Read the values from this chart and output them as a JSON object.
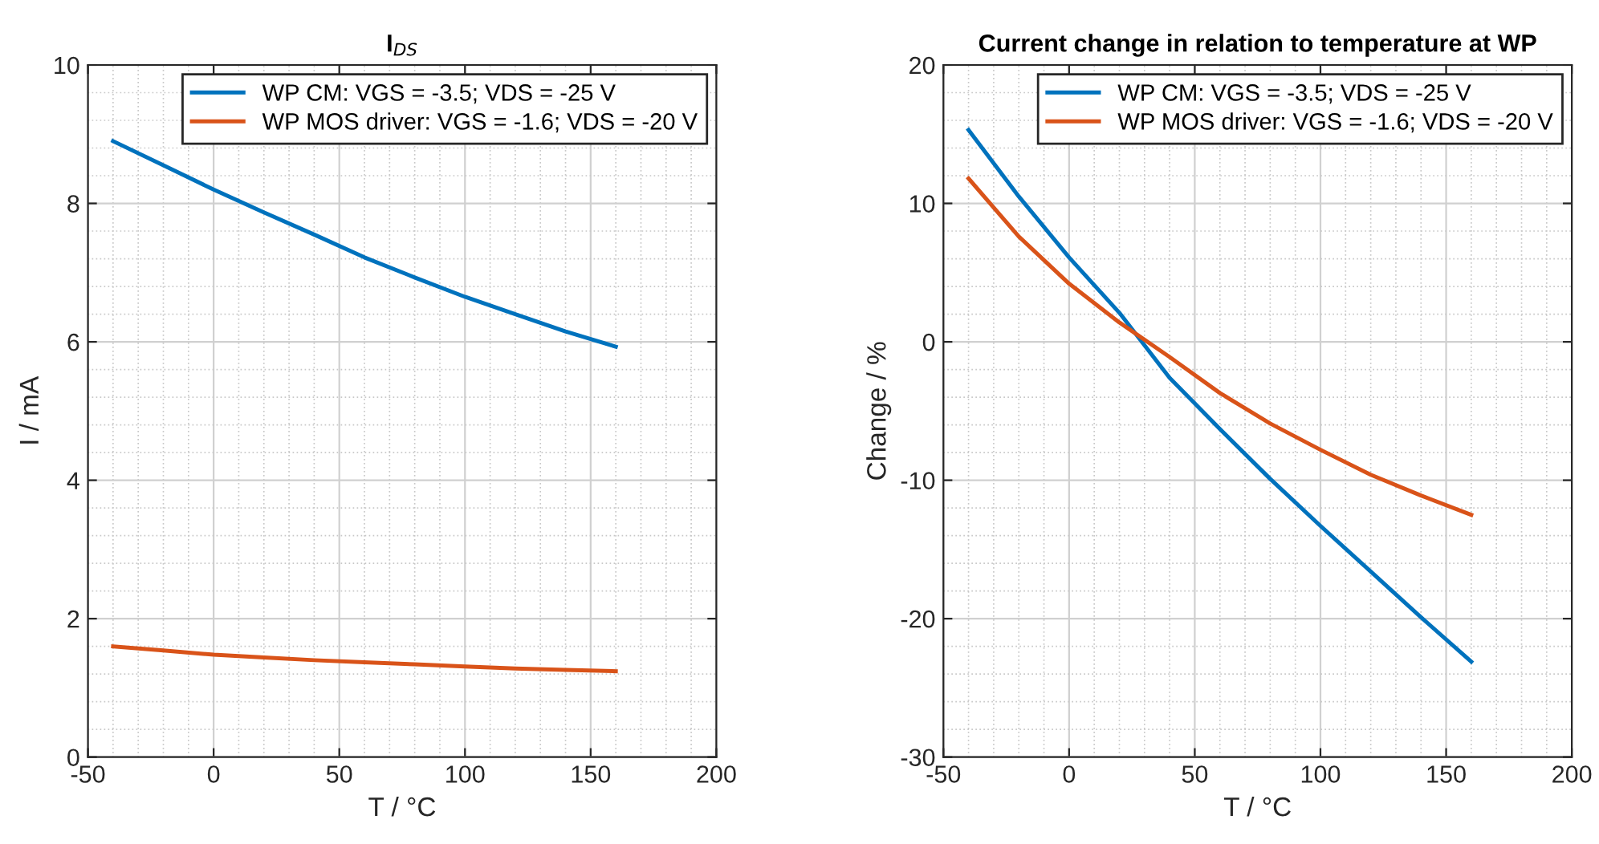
{
  "chart_data": [
    {
      "type": "line",
      "title": "I$_{DS}$",
      "xlabel": "T / °C",
      "ylabel": "I / mA",
      "x": [
        -40,
        -20,
        0,
        20,
        40,
        60,
        80,
        100,
        120,
        140,
        160
      ],
      "series": [
        {
          "name": "WP CM: VGS = -3.5; VDS = -25 V",
          "color": "#0072bd",
          "values": [
            8.9,
            8.55,
            8.2,
            7.87,
            7.55,
            7.22,
            6.93,
            6.65,
            6.4,
            6.15,
            5.93
          ]
        },
        {
          "name": "WP MOS driver: VGS = -1.6; VDS = -20 V",
          "color": "#d95319",
          "values": [
            1.6,
            1.54,
            1.48,
            1.44,
            1.4,
            1.37,
            1.34,
            1.31,
            1.28,
            1.26,
            1.24
          ]
        }
      ],
      "xlim": [
        -50,
        200
      ],
      "xticks": [
        -50,
        0,
        50,
        100,
        150,
        200
      ],
      "ylim": [
        0,
        10
      ],
      "yticks": [
        0,
        2,
        4,
        6,
        8,
        10
      ],
      "grid": true,
      "legend": "top right",
      "marker": "none",
      "line_style": "solid"
    },
    {
      "type": "line",
      "title": "Current change in relation to temperature at WP",
      "xlabel": "T / °C",
      "ylabel": "Change / %",
      "x": [
        -40,
        -20,
        0,
        20,
        40,
        60,
        80,
        100,
        120,
        140,
        160
      ],
      "series": [
        {
          "name": "WP CM: VGS = -3.5; VDS = -25 V",
          "color": "#0072bd",
          "values": [
            15.3,
            10.5,
            6.1,
            2.1,
            -2.6,
            -6.3,
            -9.9,
            -13.3,
            -16.6,
            -19.9,
            -23.1
          ]
        },
        {
          "name": "WP MOS driver: VGS = -1.6; VDS = -20 V",
          "color": "#d95319",
          "values": [
            11.8,
            7.6,
            4.2,
            1.4,
            -1.1,
            -3.7,
            -5.9,
            -7.8,
            -9.6,
            -11.1,
            -12.5
          ]
        }
      ],
      "xlim": [
        -50,
        200
      ],
      "xticks": [
        -50,
        0,
        50,
        100,
        150,
        200
      ],
      "ylim": [
        -30,
        20
      ],
      "yticks": [
        -30,
        -20,
        -10,
        0,
        10,
        20
      ],
      "grid": true,
      "legend": "top right",
      "marker": "none",
      "line_style": "solid"
    }
  ]
}
